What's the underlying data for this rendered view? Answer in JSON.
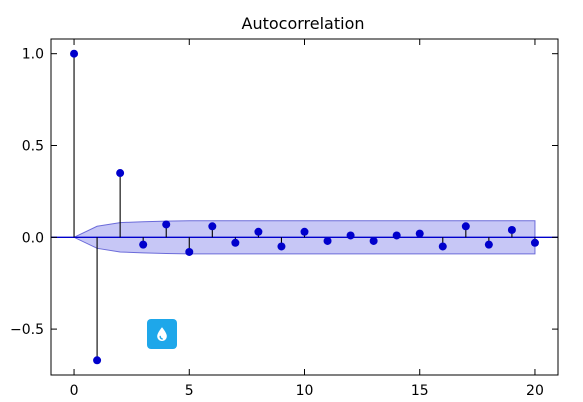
{
  "chart_data": {
    "type": "stem",
    "title": "Autocorrelation",
    "xlabel": "",
    "ylabel": "",
    "xlim": [
      -1,
      21
    ],
    "ylim": [
      -0.75,
      1.08
    ],
    "x_ticks": [
      0,
      5,
      10,
      15,
      20
    ],
    "x_tick_labels": [
      "0",
      "5",
      "10",
      "15",
      "20"
    ],
    "y_ticks": [
      -0.5,
      0.0,
      0.5,
      1.0
    ],
    "y_tick_labels": [
      "−0.5",
      "0.0",
      "0.5",
      "1.0"
    ],
    "series": [
      {
        "x": [
          0,
          1,
          2,
          3,
          4,
          5,
          6,
          7,
          8,
          9,
          10,
          11,
          12,
          13,
          14,
          15,
          16,
          17,
          18,
          19,
          20
        ],
        "values": [
          1.0,
          -0.67,
          0.35,
          -0.04,
          0.07,
          -0.08,
          0.06,
          -0.03,
          0.03,
          -0.05,
          0.03,
          -0.02,
          0.01,
          -0.02,
          0.01,
          0.02,
          -0.05,
          0.06,
          -0.04,
          0.04,
          -0.03
        ],
        "color": "#0000cc"
      }
    ],
    "confidence_band": {
      "x": [
        0,
        1,
        2,
        3,
        4,
        5,
        6,
        7,
        8,
        9,
        10,
        11,
        12,
        13,
        14,
        15,
        16,
        17,
        18,
        19,
        20
      ],
      "upper": [
        0.0,
        0.06,
        0.08,
        0.085,
        0.088,
        0.09,
        0.09,
        0.09,
        0.09,
        0.09,
        0.09,
        0.09,
        0.09,
        0.09,
        0.09,
        0.09,
        0.09,
        0.09,
        0.09,
        0.09,
        0.09
      ],
      "lower": [
        0.0,
        -0.06,
        -0.08,
        -0.085,
        -0.088,
        -0.09,
        -0.09,
        -0.09,
        -0.09,
        -0.09,
        -0.09,
        -0.09,
        -0.09,
        -0.09,
        -0.09,
        -0.09,
        -0.09,
        -0.09,
        -0.09,
        -0.09,
        -0.09
      ],
      "color": "#9999ee"
    },
    "zero_line": true,
    "grid": false
  },
  "badge": {
    "icon": "water-drop-icon",
    "color": "#1ea7ea"
  }
}
